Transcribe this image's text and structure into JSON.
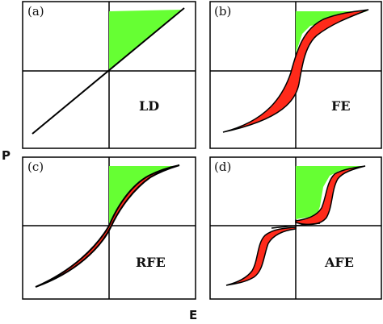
{
  "axes": {
    "vertical_label": "P",
    "horizontal_label": "E"
  },
  "colors": {
    "energy_fill": "#66ff33",
    "hysteresis_fill": "#ff2a1a",
    "line": "#000000",
    "background": "#ffffff"
  },
  "panels": [
    {
      "id": "a",
      "tag": "(a)",
      "name": "LD"
    },
    {
      "id": "b",
      "tag": "(b)",
      "name": "FE"
    },
    {
      "id": "c",
      "tag": "(c)",
      "name": "RFE"
    },
    {
      "id": "d",
      "tag": "(d)",
      "name": "AFE"
    }
  ]
}
